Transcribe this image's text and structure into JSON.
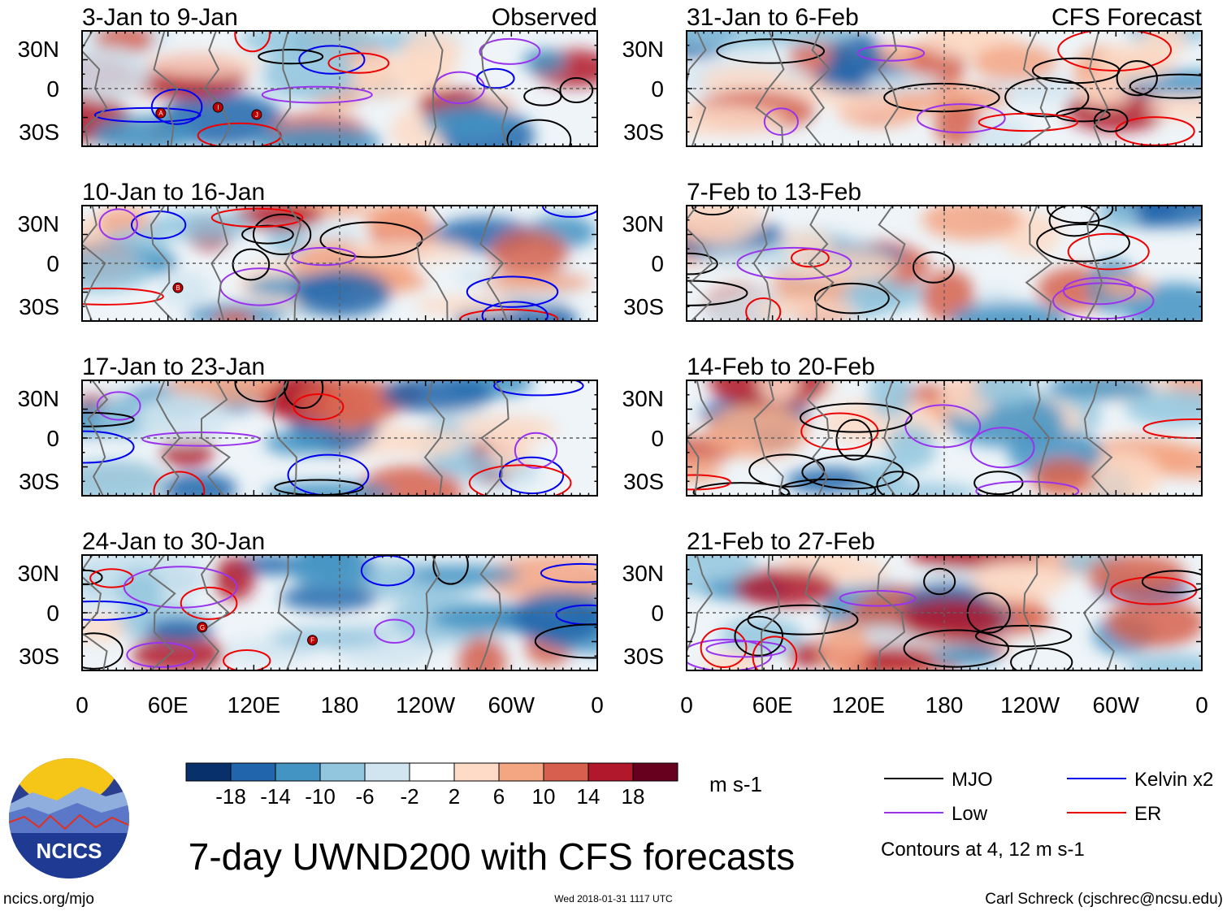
{
  "chart_data": {
    "type": "heatmap",
    "title": "7-day UWND200 with CFS forecasts",
    "variable": "UWND200",
    "units": "m s-1",
    "observed_label": "Observed",
    "forecast_label": "CFS Forecast",
    "lat_ticks": [
      "30N",
      "0",
      "30S"
    ],
    "lon_ticks": [
      "0",
      "60E",
      "120E",
      "180",
      "120W",
      "60W",
      "0"
    ],
    "lat_range": [
      -40,
      40
    ],
    "lon_range": [
      0,
      360
    ],
    "panels": [
      {
        "period": "3-Jan to 9-Jan",
        "source": "Observed",
        "storms": [
          {
            "label": "A",
            "lon": 55,
            "lat": -17
          },
          {
            "label": "I",
            "lon": 95,
            "lat": -13
          },
          {
            "label": "J",
            "lon": 122,
            "lat": -18
          }
        ]
      },
      {
        "period": "10-Jan to 16-Jan",
        "source": "Observed",
        "storms": [
          {
            "label": "B",
            "lon": 67,
            "lat": -17
          }
        ]
      },
      {
        "period": "17-Jan to 23-Jan",
        "source": "Observed",
        "storms": []
      },
      {
        "period": "24-Jan to 30-Jan",
        "source": "Observed",
        "storms": [
          {
            "label": "G",
            "lon": 84,
            "lat": -10
          },
          {
            "label": "F",
            "lon": 161,
            "lat": -19
          }
        ]
      },
      {
        "period": "31-Jan to 6-Feb",
        "source": "CFS Forecast",
        "storms": []
      },
      {
        "period": "7-Feb to 13-Feb",
        "source": "CFS Forecast",
        "storms": []
      },
      {
        "period": "14-Feb to 20-Feb",
        "source": "CFS Forecast",
        "storms": []
      },
      {
        "period": "21-Feb to 27-Feb",
        "source": "CFS Forecast",
        "storms": []
      }
    ],
    "colorbar": {
      "levels": [
        "-18",
        "-14",
        "-10",
        "-6",
        "-2",
        "2",
        "6",
        "10",
        "14",
        "18"
      ],
      "colors": [
        "#08306b",
        "#2166ac",
        "#4393c3",
        "#92c5de",
        "#d1e5f0",
        "#ffffff",
        "#fddbc7",
        "#f4a582",
        "#d6604d",
        "#b2182b",
        "#67001f"
      ]
    },
    "contour_legend": [
      {
        "name": "MJO",
        "color": "#000000"
      },
      {
        "name": "Kelvin x2",
        "color": "#0000ee"
      },
      {
        "name": "Low",
        "color": "#9933ee"
      },
      {
        "name": "ER",
        "color": "#ee0000"
      }
    ],
    "contour_note": "Contours at 4, 12 m s-1"
  },
  "footer": {
    "logo_text": "NCICS",
    "url": "ncics.org/mjo",
    "timestamp": "Wed 2018-01-31 1117 UTC",
    "credit": "Carl Schreck (cjschrec@ncsu.edu)"
  }
}
